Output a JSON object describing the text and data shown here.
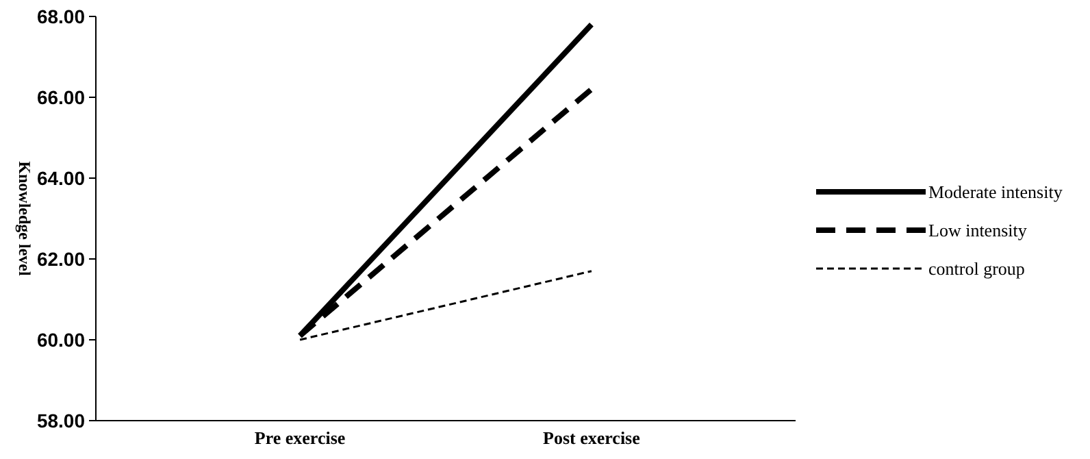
{
  "chart_data": {
    "type": "line",
    "ylabel": "Knowledge level",
    "categories": [
      "Pre exercise",
      "Post exercise"
    ],
    "series": [
      {
        "name": "Moderate intensity",
        "color": "#000000",
        "values": [
          60.1,
          67.8
        ],
        "line_style": "solid"
      },
      {
        "name": "Low intensity",
        "color": "#000000",
        "values": [
          60.1,
          66.2
        ],
        "line_style": "dashed"
      },
      {
        "name": "control group",
        "color": "#000000",
        "values": [
          60.0,
          61.7
        ],
        "line_style": "dashed"
      }
    ],
    "ylim": [
      58,
      68
    ],
    "yticks": [
      {
        "value": 58,
        "label": "58.00"
      },
      {
        "value": 60,
        "label": "60.00"
      },
      {
        "value": 62,
        "label": "62.00"
      },
      {
        "value": 64,
        "label": "64.00"
      },
      {
        "value": 66,
        "label": "66.00"
      },
      {
        "value": 68,
        "label": "68.00"
      }
    ],
    "grid": false,
    "legend": "right",
    "marker": "none"
  }
}
